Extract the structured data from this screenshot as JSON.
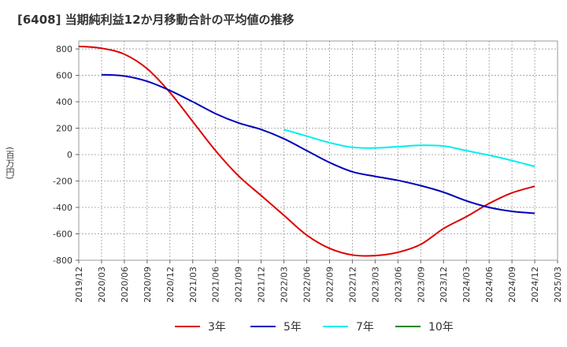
{
  "title": "[6408]  当期純利益12か月移動合計の平均値の推移",
  "y_unit": "(百万円)",
  "chart_data": {
    "type": "line",
    "title": "[6408]  当期純利益12か月移動合計の平均値の推移",
    "ylabel": "(百万円)",
    "xlabel": "",
    "ylim": [
      -800,
      860
    ],
    "y_ticks": [
      800,
      600,
      400,
      200,
      0,
      -200,
      -400,
      -600,
      -800
    ],
    "x_ticks": [
      "2019/12",
      "2020/03",
      "2020/06",
      "2020/09",
      "2020/12",
      "2021/03",
      "2021/06",
      "2021/09",
      "2021/12",
      "2022/03",
      "2022/06",
      "2022/09",
      "2022/12",
      "2023/03",
      "2023/06",
      "2023/09",
      "2023/12",
      "2024/03",
      "2024/06",
      "2024/09",
      "2024/12",
      "2025/03"
    ],
    "grid": true,
    "legend_position": "bottom",
    "series": [
      {
        "name": "3年",
        "color": "#dd0000",
        "points": [
          [
            "2019/12",
            820
          ],
          [
            "2020/03",
            805
          ],
          [
            "2020/06",
            760
          ],
          [
            "2020/09",
            650
          ],
          [
            "2020/12",
            470
          ],
          [
            "2021/03",
            250
          ],
          [
            "2021/06",
            30
          ],
          [
            "2021/09",
            -160
          ],
          [
            "2021/12",
            -310
          ],
          [
            "2022/03",
            -460
          ],
          [
            "2022/06",
            -610
          ],
          [
            "2022/09",
            -710
          ],
          [
            "2022/12",
            -760
          ],
          [
            "2023/03",
            -765
          ],
          [
            "2023/06",
            -740
          ],
          [
            "2023/09",
            -680
          ],
          [
            "2023/12",
            -560
          ],
          [
            "2024/03",
            -470
          ],
          [
            "2024/06",
            -370
          ],
          [
            "2024/09",
            -290
          ],
          [
            "2024/12",
            -240
          ]
        ]
      },
      {
        "name": "5年",
        "color": "#0000bb",
        "points": [
          [
            "2020/03",
            605
          ],
          [
            "2020/06",
            595
          ],
          [
            "2020/09",
            555
          ],
          [
            "2020/12",
            485
          ],
          [
            "2021/03",
            400
          ],
          [
            "2021/06",
            310
          ],
          [
            "2021/09",
            240
          ],
          [
            "2021/12",
            190
          ],
          [
            "2022/03",
            120
          ],
          [
            "2022/06",
            30
          ],
          [
            "2022/09",
            -60
          ],
          [
            "2022/12",
            -130
          ],
          [
            "2023/03",
            -165
          ],
          [
            "2023/06",
            -195
          ],
          [
            "2023/09",
            -235
          ],
          [
            "2023/12",
            -285
          ],
          [
            "2024/03",
            -350
          ],
          [
            "2024/06",
            -400
          ],
          [
            "2024/09",
            -430
          ],
          [
            "2024/12",
            -445
          ]
        ]
      },
      {
        "name": "7年",
        "color": "#00eeee",
        "points": [
          [
            "2022/03",
            190
          ],
          [
            "2022/06",
            140
          ],
          [
            "2022/09",
            90
          ],
          [
            "2022/12",
            55
          ],
          [
            "2023/03",
            50
          ],
          [
            "2023/06",
            60
          ],
          [
            "2023/09",
            70
          ],
          [
            "2023/12",
            65
          ],
          [
            "2024/03",
            30
          ],
          [
            "2024/06",
            -5
          ],
          [
            "2024/09",
            -45
          ],
          [
            "2024/12",
            -90
          ]
        ]
      },
      {
        "name": "10年",
        "color": "#008800",
        "points": []
      }
    ]
  }
}
